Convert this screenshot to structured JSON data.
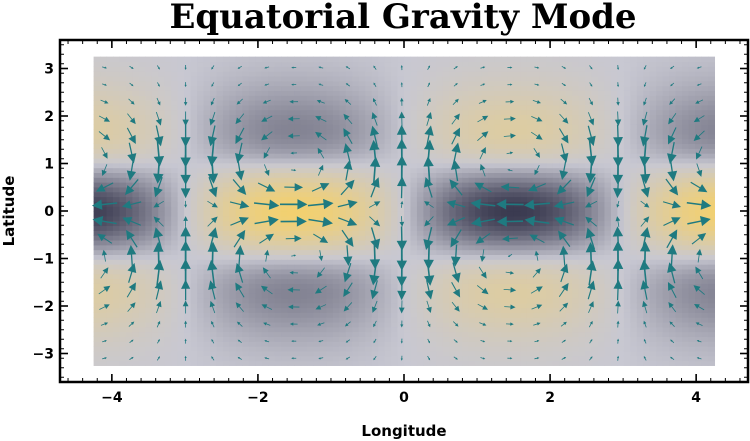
{
  "chart_data": {
    "type": "heatmap",
    "subtype": "vector-field-over-density",
    "title": "Equatorial Gravity Mode",
    "xlabel": "Longitude",
    "ylabel": "Latitude",
    "xlim": [
      -4.71,
      4.71
    ],
    "ylim": [
      -3.6,
      3.6
    ],
    "data_extent": {
      "x": [
        -4.25,
        4.25
      ],
      "y": [
        -3.25,
        3.25
      ]
    },
    "x_ticks": [
      -4,
      -2,
      0,
      2,
      4
    ],
    "x_tick_labels": [
      "−4",
      "−2",
      "0",
      "2",
      "4"
    ],
    "y_ticks": [
      -3,
      -2,
      -1,
      0,
      1,
      2,
      3
    ],
    "y_tick_labels": [
      "−3",
      "−2",
      "−1",
      "0",
      "1",
      "2",
      "3"
    ],
    "field": {
      "wavenumber": 1.05,
      "phase_deg": 0,
      "pressure": "h(x,y) = -0.57*sin(k*x)*(1 - y^2)*exp(-y^2/2)",
      "velocity_u": "u = -0.57*sin(k*x)*(1 - y^2)*exp(-y^2/2)",
      "velocity_v": "v = cos(k*x)*y*exp(-y^2/2)",
      "arrow_grid": {
        "x_start": -4.1,
        "x_step": 0.37,
        "x_count": 23,
        "y_start": -3.1,
        "y_step": 0.36,
        "y_count": 18
      }
    },
    "colors": {
      "high": "#f2d070",
      "mid": "#c8c8d2",
      "low": "#3a3a50",
      "arrow": "#1f7a80",
      "frame": "#000000",
      "background": "#ffffff"
    },
    "grid": false,
    "legend": "none"
  }
}
